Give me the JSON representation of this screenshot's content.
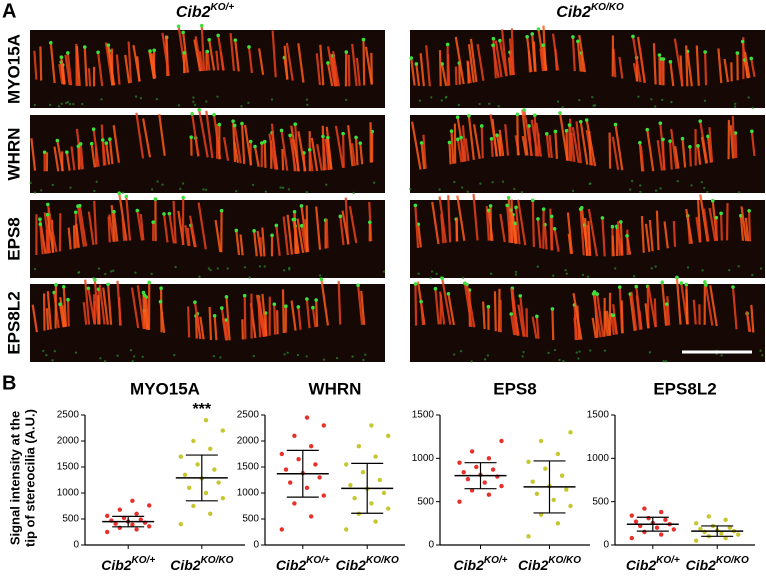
{
  "genotypes": [
    {
      "name": "Cib2",
      "sup": "KO/+"
    },
    {
      "name": "Cib2",
      "sup": "KO/KO"
    }
  ],
  "panel_a": {
    "label": "A",
    "rows": [
      "MYO15A",
      "WHRN",
      "EPS8",
      "EPS8L2"
    ]
  },
  "panel_b": {
    "label": "B",
    "ylabel": [
      "Signal intensity at the",
      "tip of stereocilia (A.U.)"
    ]
  },
  "chart_data": [
    {
      "type": "dot",
      "title": "MYO15A",
      "annotation": "***",
      "ylim": [
        0,
        2500
      ],
      "yticks": [
        0,
        500,
        1000,
        1500,
        2000,
        2500
      ],
      "series": [
        {
          "color": "#e8302a",
          "mean": 450,
          "sd": 100,
          "values": [
            250,
            300,
            330,
            360,
            390,
            410,
            430,
            450,
            470,
            490,
            520,
            560,
            600,
            680,
            760,
            850
          ]
        },
        {
          "color": "#c6c62e",
          "mean": 1290,
          "sd": 440,
          "values": [
            400,
            600,
            750,
            900,
            1000,
            1100,
            1200,
            1280,
            1350,
            1450,
            1550,
            1700,
            1850,
            2000,
            2200,
            2400
          ]
        }
      ]
    },
    {
      "type": "dot",
      "title": "WHRN",
      "ylim": [
        0,
        2500
      ],
      "yticks": [
        0,
        500,
        1000,
        1500,
        2000,
        2500
      ],
      "series": [
        {
          "color": "#e8302a",
          "mean": 1370,
          "sd": 450,
          "values": [
            300,
            550,
            800,
            950,
            1100,
            1200,
            1300,
            1380,
            1450,
            1550,
            1650,
            1750,
            1900,
            2100,
            2300,
            2450
          ]
        },
        {
          "color": "#c6c62e",
          "mean": 1090,
          "sd": 480,
          "values": [
            300,
            450,
            600,
            700,
            800,
            900,
            1000,
            1080,
            1150,
            1250,
            1400,
            1550,
            1700,
            1900,
            2100,
            2300
          ]
        }
      ]
    },
    {
      "type": "dot",
      "title": "EPS8",
      "ylim": [
        0,
        1500
      ],
      "yticks": [
        0,
        500,
        1000,
        1500
      ],
      "series": [
        {
          "color": "#e8302a",
          "mean": 800,
          "sd": 150,
          "values": [
            500,
            580,
            630,
            680,
            720,
            760,
            790,
            810,
            840,
            870,
            900,
            950,
            1000,
            1080,
            1200
          ]
        },
        {
          "color": "#c6c62e",
          "mean": 670,
          "sd": 300,
          "values": [
            100,
            250,
            350,
            450,
            520,
            590,
            640,
            680,
            730,
            800,
            880,
            960,
            1050,
            1200,
            1300
          ]
        }
      ]
    },
    {
      "type": "dot",
      "title": "EPS8L2",
      "ylim": [
        0,
        1500
      ],
      "yticks": [
        0,
        500,
        1000,
        1500
      ],
      "series": [
        {
          "color": "#e8302a",
          "mean": 240,
          "sd": 80,
          "values": [
            80,
            120,
            150,
            180,
            200,
            220,
            240,
            255,
            270,
            290,
            310,
            340,
            380,
            420
          ]
        },
        {
          "color": "#c6c62e",
          "mean": 160,
          "sd": 60,
          "values": [
            50,
            80,
            100,
            120,
            135,
            150,
            160,
            170,
            185,
            200,
            220,
            250,
            290,
            330
          ]
        }
      ]
    }
  ]
}
